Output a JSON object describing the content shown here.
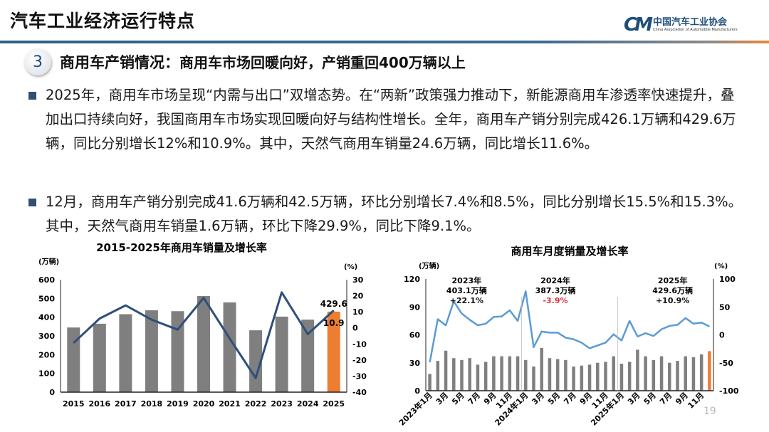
{
  "header": {
    "title": "汽车工业经济运行特点",
    "logo_cn": "中国汽车工业协会",
    "logo_en": "China Association of Automobile Manufacturers"
  },
  "section": {
    "number": "3",
    "heading": "商用车产销情况：",
    "subheading": "商用车市场回暖向好，产销重回400万辆以上"
  },
  "paragraphs": [
    "2025年，商用车市场呈现“内需与出口”双增态势。在“两新”政策强力推动下，新能源商用车渗透率快速提升，叠加出口持续向好，我国商用车市场实现回暖向好与结构性增长。全年，商用车产销分别完成426.1万辆和429.6万辆，同比分别增长12%和10.9%。其中，天然气商用车销量24.6万辆，同比增长11.6%。",
    "12月，商用车产销分别完成41.6万辆和42.5万辆，环比分别增长7.4%和8.5%，同比分别增长15.5%和15.3%。其中，天然气商用车销量1.6万辆，环比下降29.9%，同比下降9.1%。"
  ],
  "page_number": "19",
  "colors": {
    "bar": "#7f7f7f",
    "highlight": "#ed7d31",
    "line_annual": "#2f4f7a",
    "line_monthly": "#5b9bd5",
    "negative": "#e0303a",
    "accent": "#1f4e79"
  },
  "chart_data": [
    {
      "type": "bar+line",
      "title": "2015-2025年商用车销量及增长率",
      "ylabel": "(万辆)",
      "y2label": "(%)",
      "categories": [
        "2015",
        "2016",
        "2017",
        "2018",
        "2019",
        "2020",
        "2021",
        "2022",
        "2023",
        "2024",
        "2025"
      ],
      "ylim": [
        0,
        600
      ],
      "yticks": [
        0,
        100,
        200,
        300,
        400,
        500,
        600
      ],
      "y2lim": [
        -40,
        30
      ],
      "y2ticks": [
        -40,
        -30,
        -20,
        -10,
        0,
        10,
        20,
        30
      ],
      "series": [
        {
          "kind": "bar",
          "values": [
            345,
            365,
            416,
            437,
            432,
            513,
            479,
            330,
            403,
            387,
            429.6
          ]
        },
        {
          "kind": "line",
          "axis": "right",
          "values": [
            -9.4,
            5.8,
            14,
            5.1,
            -1.1,
            18.7,
            -6.6,
            -31.2,
            22.1,
            -3.9,
            10.9
          ]
        }
      ],
      "labels": {
        "bar_last": "429.6",
        "line_last": "10.9"
      },
      "grid": false
    },
    {
      "type": "bar+line",
      "title": "商用车月度销量及增长率",
      "ylabel": "(万辆)",
      "y2label": "(%)",
      "ylim": [
        0,
        120
      ],
      "yticks": [
        0,
        30,
        60,
        90,
        120
      ],
      "y2lim": [
        -100,
        100
      ],
      "y2ticks": [
        -100,
        -50,
        0,
        50,
        100
      ],
      "xtick_labels": [
        "2023年1月",
        "3月",
        "5月",
        "7月",
        "9月",
        "11月",
        "2024年1月",
        "3月",
        "5月",
        "7月",
        "9月",
        "11月",
        "2025年1月",
        "3月",
        "5月",
        "7月",
        "9月",
        "11月"
      ],
      "series": [
        {
          "kind": "bar",
          "values": [
            18,
            32,
            43,
            35,
            33,
            35,
            28,
            31,
            37,
            37,
            37,
            37,
            33,
            26,
            46,
            35,
            34,
            33,
            26,
            27,
            28,
            30,
            31,
            37,
            29,
            31,
            44,
            37,
            33,
            37,
            30,
            32,
            37,
            36,
            39,
            42.5
          ]
        },
        {
          "kind": "line",
          "axis": "right",
          "values": [
            -49,
            28,
            17,
            60,
            38,
            27,
            17,
            20,
            32,
            33,
            44,
            25,
            78,
            -22,
            6,
            4,
            4,
            -5,
            -8,
            -14,
            -24,
            -19,
            -14,
            1,
            -10,
            25,
            -3,
            3,
            -2,
            10,
            16,
            18,
            30,
            20,
            22,
            15
          ]
        }
      ],
      "annotations": [
        {
          "year": "2023年",
          "total": "403.1万辆",
          "growth": "+22.1%"
        },
        {
          "year": "2024年",
          "total": "387.3万辆",
          "growth": "-3.9%"
        },
        {
          "year": "2025年",
          "total": "429.6万辆",
          "growth": "+10.9%"
        }
      ],
      "grid": false
    }
  ]
}
